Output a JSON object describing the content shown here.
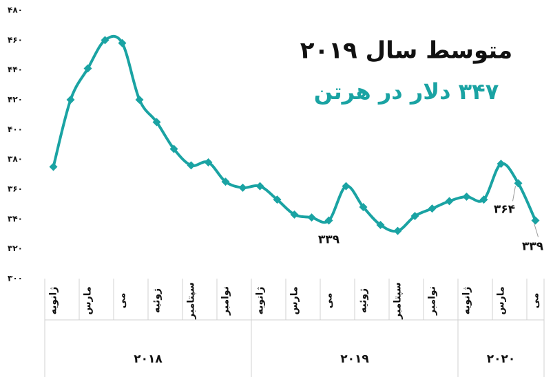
{
  "chart_data": {
    "type": "line",
    "annotations": [
      "متوسط سال ۲۰۱۹",
      "۳۴۷ دلار در هرتن"
    ],
    "categories": [
      "ژانویه",
      null,
      "مارس",
      null,
      "می",
      null,
      "ژوئیه",
      null,
      "سپتامبر",
      null,
      "نوامبر",
      null,
      "ژانویه",
      null,
      "مارس",
      null,
      "می",
      null,
      "ژوئیه",
      null,
      "سپتامبر",
      null,
      "نوامبر",
      null,
      "ژانویه",
      null,
      "مارس",
      null,
      "می"
    ],
    "year_categories": [
      "۲۰۱۸",
      null,
      null,
      null,
      null,
      null,
      null,
      null,
      null,
      null,
      null,
      null,
      "۲۰۱۹",
      null,
      null,
      null,
      null,
      null,
      null,
      null,
      null,
      null,
      null,
      null,
      "۲۰۲۰",
      null,
      null,
      null,
      null
    ],
    "series": [
      {
        "color": "#1aa3a3",
        "values": [
          375,
          420,
          441,
          460,
          458,
          420,
          405,
          387,
          376,
          378,
          365,
          361,
          362,
          353,
          343,
          341,
          339,
          362,
          348,
          336,
          332,
          342,
          347,
          352,
          355,
          353,
          377,
          364,
          339
        ],
        "value_labels": [
          null,
          null,
          null,
          null,
          null,
          null,
          null,
          null,
          null,
          null,
          null,
          null,
          null,
          null,
          null,
          null,
          "۳۳۹",
          null,
          null,
          null,
          null,
          null,
          null,
          null,
          null,
          null,
          null,
          "۳۶۴",
          "۳۳۹"
        ]
      }
    ],
    "ylim": [
      300,
      480
    ],
    "yticks": [
      {
        "value": 300,
        "label": "۳۰۰"
      },
      {
        "value": 320,
        "label": "۳۲۰"
      },
      {
        "value": 340,
        "label": "۳۴۰"
      },
      {
        "value": 360,
        "label": "۳۶۰"
      },
      {
        "value": 380,
        "label": "۳۸۰"
      },
      {
        "value": 400,
        "label": "۴۰۰"
      },
      {
        "value": 420,
        "label": "۴۲۰"
      },
      {
        "value": 440,
        "label": "۴۴۰"
      },
      {
        "value": 460,
        "label": "۴۶۰"
      },
      {
        "value": 480,
        "label": "۴۸۰"
      }
    ],
    "grid": false
  }
}
